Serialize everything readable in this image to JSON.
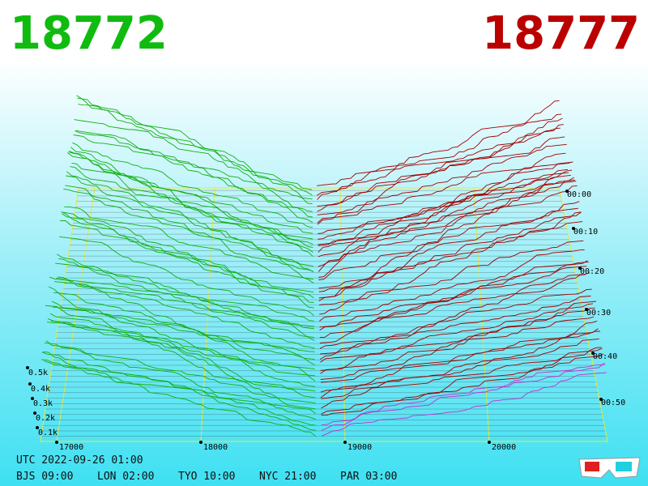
{
  "header": {
    "bid_price": "18772",
    "ask_price": "18777"
  },
  "price_axis": {
    "labels": [
      "17000",
      "18000",
      "19000",
      "20000"
    ]
  },
  "depth_axis": {
    "labels": [
      "0.5k",
      "0.4k",
      "0.3k",
      "0.2k",
      "0.1k"
    ]
  },
  "time_axis": {
    "labels": [
      "00:00",
      "00:10",
      "00:20",
      "00:30",
      "00:40",
      "00:50"
    ]
  },
  "footer": {
    "utc": "UTC 2022-09-26 01:00",
    "zones": [
      "BJS 09:00",
      "LON 02:00",
      "TYO 10:00",
      "NYC 21:00",
      "PAR 03:00"
    ]
  }
}
